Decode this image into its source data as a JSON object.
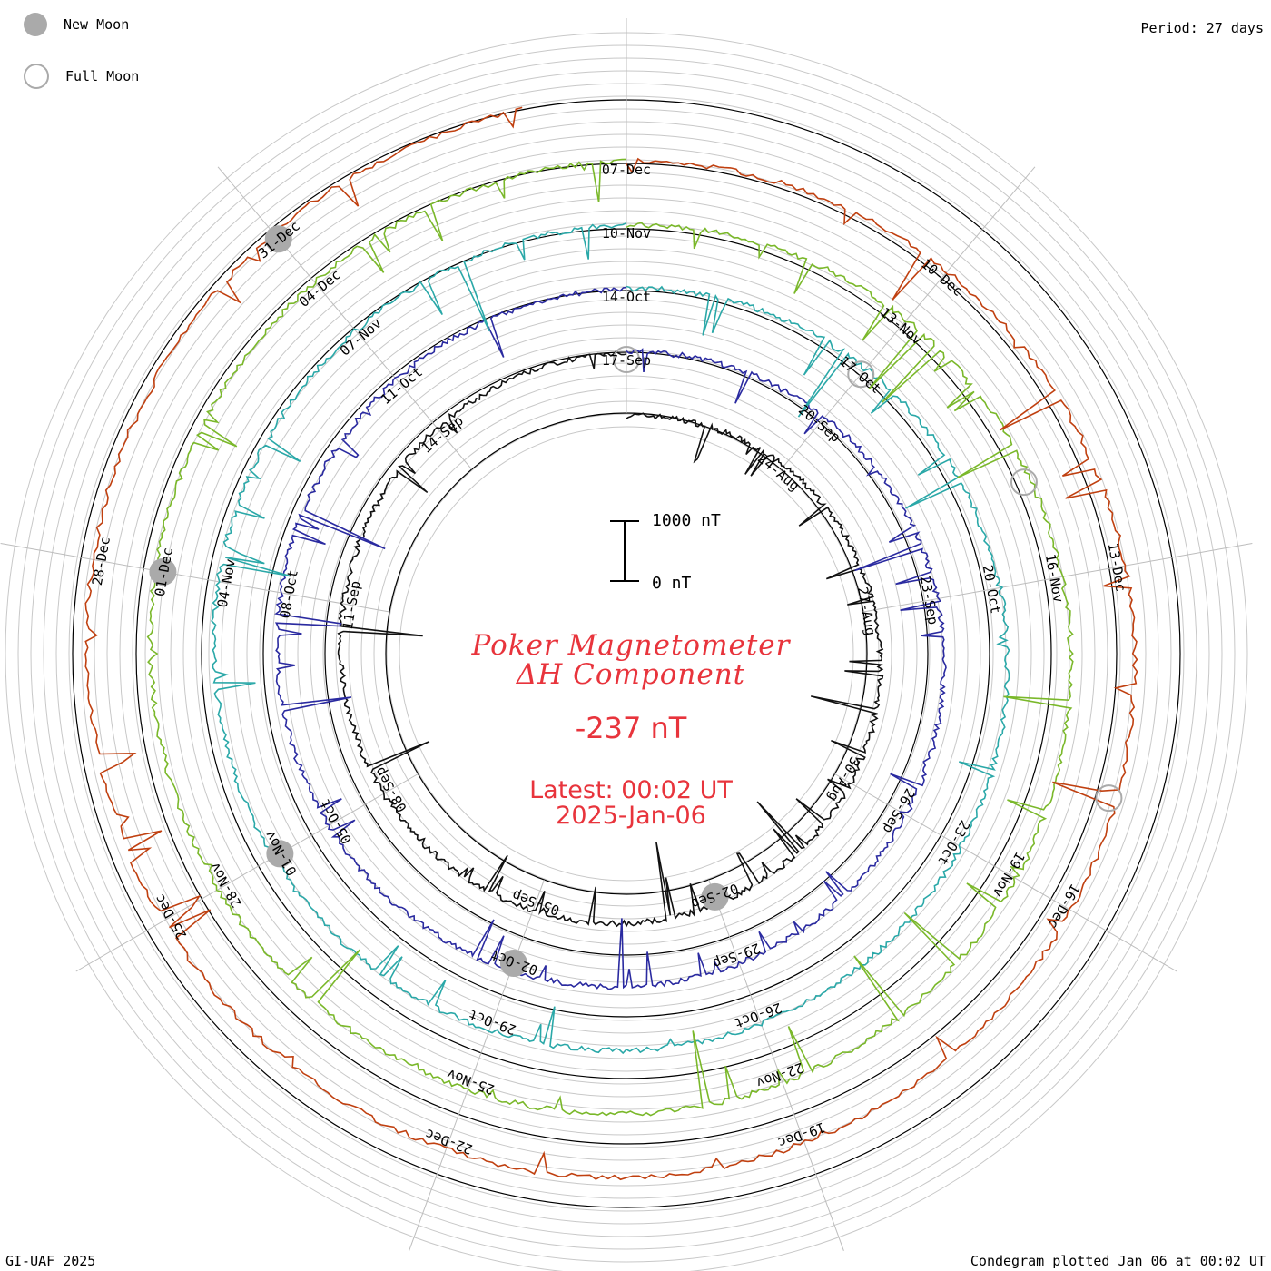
{
  "legend": {
    "new_moon": {
      "label": "New Moon",
      "color": "#aaaaaa"
    },
    "full_moon": {
      "label": "Full Moon",
      "color": "#aaaaaa"
    }
  },
  "period_label": "Period: 27 days",
  "footer_left": "GI-UAF 2025",
  "footer_right": "Condegram plotted Jan 06 at 00:02 UT",
  "title": {
    "line1": "Poker Magnetometer",
    "line2": "ΔH Component",
    "value": "-237 nT",
    "latest": "Latest: 00:02 UT",
    "date": "2025-Jan-06",
    "color": "#e8343c"
  },
  "scale": {
    "top_label": "1000 nT",
    "bottom_label": "0 nT",
    "nT": 1000
  },
  "chart_data": {
    "type": "line",
    "title": "Poker Magnetometer ΔH Component",
    "period_days": 27,
    "units": "nT",
    "rotations": [
      {
        "color": "#111111",
        "start": "2024-08-21",
        "labels": [
          "24-Aug",
          "27-Aug",
          "30-Aug",
          "02-Sep",
          "05-Sep",
          "08-Sep",
          "11-Sep",
          "14-Sep",
          "17-Sep"
        ]
      },
      {
        "color": "#2a2aa0",
        "start": "2024-09-17",
        "labels": [
          "20-Sep",
          "23-Sep",
          "26-Sep",
          "29-Sep",
          "02-Oct",
          "05-Oct",
          "08-Oct",
          "11-Oct",
          "14-Oct"
        ]
      },
      {
        "color": "#2aa8a8",
        "start": "2024-10-14",
        "labels": [
          "17-Oct",
          "20-Oct",
          "23-Oct",
          "26-Oct",
          "29-Oct",
          "01-Nov",
          "04-Nov",
          "07-Nov",
          "10-Nov"
        ]
      },
      {
        "color": "#7ab82a",
        "start": "2024-11-10",
        "labels": [
          "13-Nov",
          "16-Nov",
          "19-Nov",
          "22-Nov",
          "25-Nov",
          "28-Nov",
          "01-Dec",
          "04-Dec",
          "07-Dec"
        ]
      },
      {
        "color": "#c04010",
        "start": "2024-12-07",
        "labels": [
          "10-Dec",
          "13-Dec",
          "16-Dec",
          "19-Dec",
          "22-Dec",
          "25-Dec",
          "28-Dec",
          "31-Dec"
        ]
      }
    ],
    "series_colors": [
      "#111111",
      "#1a1a7a",
      "#3040b8",
      "#2aa8a8",
      "#3cb878",
      "#7ab82a",
      "#a8a810",
      "#c06010",
      "#b81010"
    ],
    "new_moons": [
      "2024-09-02",
      "2024-10-02",
      "2024-11-01",
      "2024-12-01",
      "2024-12-31"
    ],
    "full_moons": [
      "2024-09-17",
      "2024-10-17",
      "2024-11-15",
      "2024-12-15"
    ],
    "latest_value": -237
  }
}
